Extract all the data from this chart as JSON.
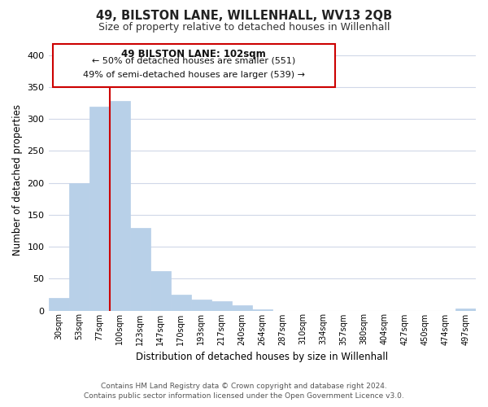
{
  "title": "49, BILSTON LANE, WILLENHALL, WV13 2QB",
  "subtitle": "Size of property relative to detached houses in Willenhall",
  "xlabel": "Distribution of detached houses by size in Willenhall",
  "ylabel": "Number of detached properties",
  "bar_labels": [
    "30sqm",
    "53sqm",
    "77sqm",
    "100sqm",
    "123sqm",
    "147sqm",
    "170sqm",
    "193sqm",
    "217sqm",
    "240sqm",
    "264sqm",
    "287sqm",
    "310sqm",
    "334sqm",
    "357sqm",
    "380sqm",
    "404sqm",
    "427sqm",
    "450sqm",
    "474sqm",
    "497sqm"
  ],
  "bar_values": [
    20,
    200,
    320,
    328,
    130,
    62,
    25,
    17,
    15,
    8,
    2,
    0,
    0,
    0,
    0,
    0,
    0,
    0,
    0,
    0,
    3
  ],
  "bar_color": "#b8d0e8",
  "bar_edge_color": "#b8d0e8",
  "highlight_color": "#cc0000",
  "red_line_x": 3,
  "ylim": [
    0,
    410
  ],
  "yticks": [
    0,
    50,
    100,
    150,
    200,
    250,
    300,
    350,
    400
  ],
  "annotation_line0": "49 BILSTON LANE: 102sqm",
  "annotation_line1": "← 50% of detached houses are smaller (551)",
  "annotation_line2": "49% of semi-detached houses are larger (539) →",
  "annotation_box_color": "#ffffff",
  "annotation_box_edge": "#cc0000",
  "footer_line1": "Contains HM Land Registry data © Crown copyright and database right 2024.",
  "footer_line2": "Contains public sector information licensed under the Open Government Licence v3.0.",
  "background_color": "#ffffff",
  "grid_color": "#d0d8e8"
}
